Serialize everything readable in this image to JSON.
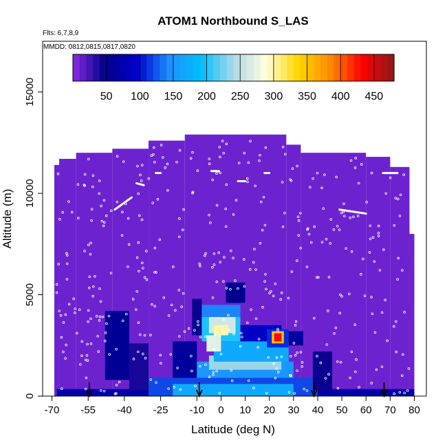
{
  "chart_data": {
    "type": "heatmap",
    "title": "ATOM1 Northbound S_LAS",
    "subtitle": "Flts: 6,7,8,9",
    "annotation": "MMDD: 0812,0815,0817,0820",
    "xlabel": "Latitude (deg N)",
    "ylabel": "Altitude (m)",
    "xlim": [
      -70,
      80
    ],
    "ylim": [
      0,
      17500
    ],
    "x_ticks": [
      -70,
      -55,
      -40,
      -25,
      -10,
      0,
      10,
      20,
      30,
      40,
      50,
      60,
      70,
      80
    ],
    "x_tick_labels": [
      "-70",
      "-55",
      "-40",
      "-25",
      "-10",
      "0",
      "10",
      "20",
      "30",
      "40",
      "50",
      "60",
      "70",
      "80"
    ],
    "y_ticks": [
      0,
      5000,
      10000,
      15000
    ],
    "y_tick_labels": [
      "0",
      "5000",
      "10000",
      "15000"
    ],
    "colorbar": {
      "range": [
        0,
        480
      ],
      "ticks": [
        50,
        100,
        150,
        200,
        250,
        300,
        350,
        400,
        450
      ],
      "tick_labels": [
        "50",
        "100",
        "150",
        "200",
        "250",
        "300",
        "350",
        "400",
        "450"
      ],
      "colors": [
        "#8a2be2",
        "#00008b",
        "#0000cd",
        "#1e90ff",
        "#00bfff",
        "#add8e6",
        "#ffffe0",
        "#ffd700",
        "#ff8c00",
        "#ff0000",
        "#8b1a1a"
      ]
    },
    "background_value": 10,
    "coverage_columns": [
      {
        "lat": [
          -69,
          -67
        ],
        "alt_top": 11400
      },
      {
        "lat": [
          -67,
          -60
        ],
        "alt_top": 11700
      },
      {
        "lat": [
          -60,
          -45
        ],
        "alt_top": 12000
      },
      {
        "lat": [
          -45,
          -30
        ],
        "alt_top": 12200
      },
      {
        "lat": [
          -30,
          -15
        ],
        "alt_top": 12600
      },
      {
        "lat": [
          -15,
          27
        ],
        "alt_top": 12900
      },
      {
        "lat": [
          27,
          33
        ],
        "alt_top": 12400
      },
      {
        "lat": [
          33,
          60
        ],
        "alt_top": 12000
      },
      {
        "lat": [
          60,
          70
        ],
        "alt_top": 11800
      },
      {
        "lat": [
          70,
          78
        ],
        "alt_top": 11300
      },
      {
        "lat": [
          78,
          80
        ],
        "alt_top": 8000
      }
    ],
    "enhancements": [
      {
        "lat": [
          -68,
          80
        ],
        "alt": [
          0,
          350
        ],
        "value": 70
      },
      {
        "lat": [
          -30,
          40
        ],
        "alt": [
          0,
          900
        ],
        "value": 120
      },
      {
        "lat": [
          -20,
          30
        ],
        "alt": [
          0,
          600
        ],
        "value": 170
      },
      {
        "lat": [
          -48,
          -38
        ],
        "alt": [
          800,
          4200
        ],
        "value": 55
      },
      {
        "lat": [
          -38,
          -30
        ],
        "alt": [
          300,
          2600
        ],
        "value": 40
      },
      {
        "lat": [
          -20,
          -10
        ],
        "alt": [
          900,
          2700
        ],
        "value": 60
      },
      {
        "lat": [
          -10,
          30
        ],
        "alt": [
          900,
          1700
        ],
        "value": 150
      },
      {
        "lat": [
          -5,
          25
        ],
        "alt": [
          1300,
          2000
        ],
        "value": 235
      },
      {
        "lat": [
          -3,
          28
        ],
        "alt": [
          1700,
          2700
        ],
        "value": 170
      },
      {
        "lat": [
          -5,
          25
        ],
        "alt": [
          2700,
          3500
        ],
        "value": 90
      },
      {
        "lat": [
          -8,
          8
        ],
        "alt": [
          2700,
          4200
        ],
        "value": 200
      },
      {
        "lat": [
          -5,
          6
        ],
        "alt": [
          3100,
          3900
        ],
        "value": 260
      },
      {
        "lat": [
          -3,
          3
        ],
        "alt": [
          3000,
          3500
        ],
        "value": 300
      },
      {
        "lat": [
          -6,
          0
        ],
        "alt": [
          2200,
          3000
        ],
        "value": 270
      },
      {
        "lat": [
          -8,
          8
        ],
        "alt": [
          3900,
          4500
        ],
        "value": 140
      },
      {
        "lat": [
          19,
          28
        ],
        "alt": [
          2400,
          3300
        ],
        "value": 110
      },
      {
        "lat": [
          21,
          26
        ],
        "alt": [
          2600,
          3200
        ],
        "value": 350
      },
      {
        "lat": [
          22,
          25
        ],
        "alt": [
          2700,
          3100
        ],
        "value": 430
      },
      {
        "lat": [
          28,
          34
        ],
        "alt": [
          2500,
          3200
        ],
        "value": 60
      },
      {
        "lat": [
          38,
          46
        ],
        "alt": [
          300,
          2200
        ],
        "value": 45
      },
      {
        "lat": [
          2,
          10
        ],
        "alt": [
          4600,
          5600
        ],
        "value": 50
      },
      {
        "lat": [
          -12,
          -8
        ],
        "alt": [
          3000,
          4800
        ],
        "value": 45
      }
    ],
    "sample_tracks": [
      {
        "lat": [
          -44,
          -37
        ],
        "alt": [
          9200,
          9800
        ]
      },
      {
        "lat": [
          49,
          60
        ],
        "alt": [
          9200,
          9000
        ]
      },
      {
        "lat": [
          -35,
          -32
        ],
        "alt": [
          10500,
          10400
        ]
      },
      {
        "lat": [
          -27,
          -25
        ],
        "alt": [
          11000,
          11000
        ]
      },
      {
        "lat": [
          -4,
          -1
        ],
        "alt": [
          11100,
          11100
        ]
      },
      {
        "lat": [
          7,
          10
        ],
        "alt": [
          10600,
          10600
        ]
      },
      {
        "lat": [
          18,
          20
        ],
        "alt": [
          11000,
          11000
        ]
      },
      {
        "lat": [
          67,
          73
        ],
        "alt": [
          11000,
          11000
        ]
      }
    ],
    "arrows_lat": [
      -54.5,
      -9,
      38.5,
      67.5
    ],
    "grid": false,
    "legend": "colorbar-top"
  }
}
